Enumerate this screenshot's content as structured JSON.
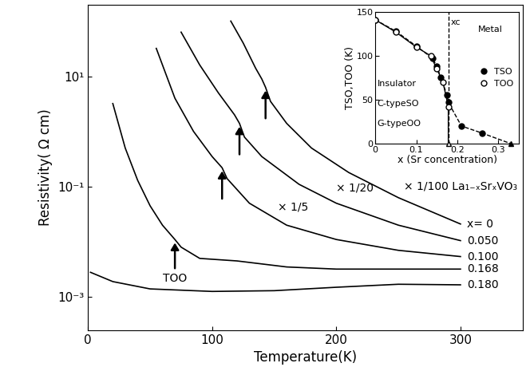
{
  "chart_data": [
    {
      "type": "line",
      "xlabel": "Temperature(K)",
      "ylabel": "Resistivity( Ω cm)",
      "log": "y",
      "xlim": [
        0,
        350
      ],
      "xticks": [
        0,
        100,
        200,
        300
      ],
      "ylim": [
        0.00025,
        200
      ],
      "yticks": [
        {
          "value": 0.001,
          "label": "10⁻³"
        },
        {
          "value": 0.1,
          "label": "10⁻¹"
        },
        {
          "value": 10,
          "label": "10¹"
        }
      ],
      "color": "#000000",
      "series": [
        {
          "name": "x= 0",
          "scale_label": "× 1/100 La₁₋ₓSrₓVO₃",
          "t_oo": 143,
          "x": [
            115,
            125,
            135,
            140,
            143,
            147,
            160,
            180,
            210,
            250,
            300
          ],
          "values": [
            100,
            40,
            14,
            8.9,
            6.3,
            3.5,
            1.4,
            0.5,
            0.18,
            0.063,
            0.021
          ]
        },
        {
          "name": "0.050",
          "scale_label": "× 1/20",
          "t_oo": 122,
          "x": [
            75,
            90,
            105,
            118,
            122,
            126,
            140,
            170,
            200,
            250,
            300
          ],
          "values": [
            63,
            16,
            5.0,
            2.0,
            1.4,
            0.79,
            0.35,
            0.11,
            0.05,
            0.02,
            0.0105
          ]
        },
        {
          "name": "0.100",
          "scale_label": "× 1/5",
          "t_oo": 108,
          "x": [
            55,
            70,
            85,
            100,
            108,
            112,
            130,
            160,
            200,
            250,
            300
          ],
          "values": [
            32,
            4.0,
            1.0,
            0.35,
            0.22,
            0.14,
            0.05,
            0.02,
            0.011,
            0.007,
            0.0054
          ]
        },
        {
          "name": "0.168",
          "t_oo": 70,
          "arrow_label": "TOO",
          "x": [
            20,
            30,
            40,
            50,
            60,
            70,
            75,
            90,
            120,
            160,
            200,
            250,
            300
          ],
          "values": [
            3.2,
            0.5,
            0.13,
            0.045,
            0.02,
            0.011,
            0.008,
            0.005,
            0.0045,
            0.0035,
            0.0032,
            0.0032,
            0.0032
          ]
        },
        {
          "name": "0.180",
          "x": [
            2,
            20,
            50,
            100,
            150,
            200,
            250,
            300
          ],
          "values": [
            0.0028,
            0.0019,
            0.0014,
            0.00126,
            0.0013,
            0.0015,
            0.0017,
            0.00166
          ]
        }
      ]
    },
    {
      "type": "scatter",
      "xlabel": "x (Sr concentration)",
      "ylabel": "TSO,TOO (K)",
      "xlim": [
        0,
        0.35
      ],
      "xticks": [
        0,
        0.1,
        0.2,
        0.3
      ],
      "ylim": [
        0,
        150
      ],
      "yticks": [
        0,
        50,
        100,
        150
      ],
      "legend": "center right",
      "critical_x": 0.178,
      "annotations": [
        "xc",
        "Metal",
        "Insulator",
        "C-typeSO",
        "G-typeOO"
      ],
      "series": [
        {
          "name": "TSO",
          "color": "#000000",
          "marker": "o",
          "line_style": "dashed",
          "x": [
            0,
            0.05,
            0.1,
            0.14,
            0.15,
            0.16,
            0.175,
            0.178,
            0.21,
            0.26
          ],
          "values": [
            141,
            128,
            111,
            97,
            88,
            75,
            55,
            47,
            20,
            12
          ],
          "end": [
            0.33,
            0
          ]
        },
        {
          "name": "TOO",
          "color": "#ffffff",
          "marker": "o",
          "line_style": "solid",
          "x": [
            0,
            0.05,
            0.1,
            0.135,
            0.15,
            0.165,
            0.178
          ],
          "values": [
            141,
            127,
            110,
            100,
            85,
            70,
            42
          ],
          "end": [
            0.178,
            0
          ]
        }
      ]
    }
  ]
}
